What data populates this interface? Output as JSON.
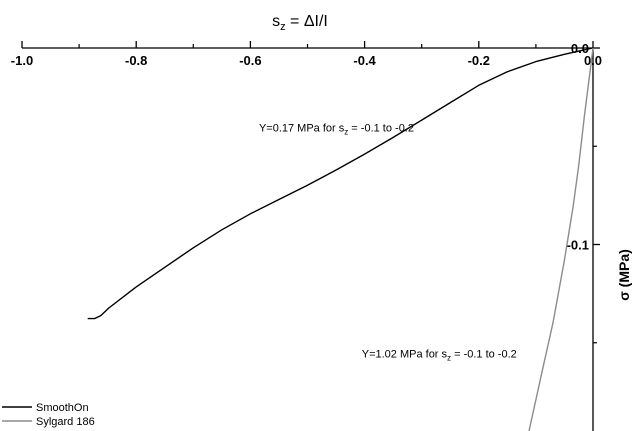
{
  "chart_data": {
    "type": "line",
    "x_axis": {
      "position": "top",
      "label_main": "s",
      "label_sub": "z",
      "label_rest": " = ΔI/I",
      "range": [
        -1.0,
        0.0
      ],
      "ticks": [
        -1.0,
        -0.8,
        -0.6,
        -0.4,
        -0.2,
        0.0
      ],
      "tick_labels": [
        "-1.0",
        "-0.8",
        "-0.6",
        "-0.4",
        "-0.2",
        "0.0"
      ]
    },
    "y_axis": {
      "position": "right",
      "label": "σ (MPa)",
      "range": [
        -0.2,
        0.0
      ],
      "ticks": [
        0.0,
        -0.1
      ],
      "tick_labels": [
        "0.0",
        "-0.1"
      ]
    },
    "series": [
      {
        "name": "SmoothOn",
        "color": "#000000",
        "points": [
          [
            -0.885,
            -0.1377
          ],
          [
            -0.873,
            -0.1377
          ],
          [
            -0.862,
            -0.1362
          ],
          [
            -0.848,
            -0.1323
          ],
          [
            -0.8,
            -0.1216
          ],
          [
            -0.75,
            -0.1116
          ],
          [
            -0.7,
            -0.1017
          ],
          [
            -0.65,
            -0.0925
          ],
          [
            -0.6,
            -0.0844
          ],
          [
            -0.55,
            -0.0771
          ],
          [
            -0.5,
            -0.0698
          ],
          [
            -0.45,
            -0.0621
          ],
          [
            -0.4,
            -0.054
          ],
          [
            -0.35,
            -0.0455
          ],
          [
            -0.3,
            -0.0367
          ],
          [
            -0.25,
            -0.0278
          ],
          [
            -0.2,
            -0.019
          ],
          [
            -0.15,
            -0.0121
          ],
          [
            -0.1,
            -0.0069
          ],
          [
            -0.05,
            -0.0032
          ],
          [
            -0.02,
            -0.0012
          ],
          [
            0.0,
            0.0
          ]
        ]
      },
      {
        "name": "Sylgard 186",
        "color": "#8c8c8c",
        "points": [
          [
            -0.116,
            -0.2
          ],
          [
            -0.09,
            -0.1658
          ],
          [
            -0.07,
            -0.1398
          ],
          [
            -0.05,
            -0.108
          ],
          [
            -0.035,
            -0.0811
          ],
          [
            -0.025,
            -0.0599
          ],
          [
            -0.015,
            -0.0346
          ],
          [
            -0.008,
            -0.0186
          ],
          [
            -0.003,
            -0.007
          ],
          [
            0.0,
            0.0
          ]
        ]
      }
    ],
    "annotations": [
      {
        "pre": "Y=0.17 MPa for s",
        "sub": "z",
        "post": " = -0.1 to -0.2",
        "x": -0.585,
        "y": -0.0425
      },
      {
        "pre": "Y=1.02 MPa for s",
        "sub": "z",
        "post": " = -0.1 to -0.2",
        "x": -0.405,
        "y": -0.1574
      }
    ],
    "legend": {
      "placement": "bottom-left",
      "entries": [
        "SmoothOn",
        "Sylgard 186"
      ]
    },
    "grid": false
  }
}
